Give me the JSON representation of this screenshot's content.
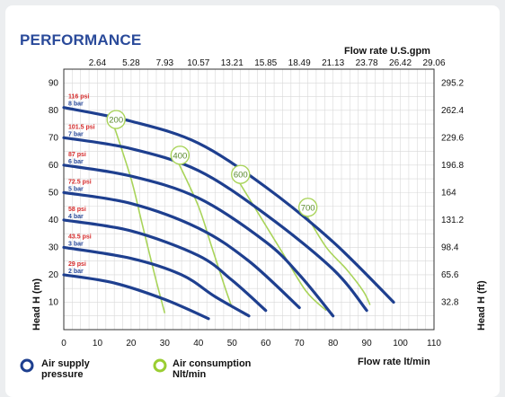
{
  "header": {
    "title": "PERFORMANCE"
  },
  "chart_data": {
    "type": "line",
    "title": "PERFORMANCE",
    "x_axis": {
      "label": "Flow rate  lt/min",
      "ticks": [
        "0",
        "10",
        "20",
        "30",
        "40",
        "50",
        "60",
        "70",
        "80",
        "90",
        "100",
        "110"
      ],
      "range": [
        0,
        110
      ]
    },
    "x2_axis": {
      "label": "Flow rate U.S.gpm",
      "ticks": [
        "2.64",
        "5.28",
        "7.93",
        "10.57",
        "13.21",
        "15.85",
        "18.49",
        "21.13",
        "23.78",
        "26.42",
        "29.06"
      ]
    },
    "y_axis": {
      "label": "Head H (m)",
      "ticks": [
        "10",
        "20",
        "30",
        "40",
        "50",
        "60",
        "70",
        "80",
        "90"
      ],
      "range": [
        0,
        95
      ]
    },
    "y2_axis": {
      "label": "Head H (ft)",
      "ticks": [
        "32.8",
        "65.6",
        "98.4",
        "131.2",
        "164",
        "196.8",
        "229.6",
        "262.4",
        "295.2"
      ]
    },
    "pressure_series": [
      {
        "psi": "116 psi",
        "bar": "8 bar",
        "points": [
          [
            0,
            81
          ],
          [
            20,
            76
          ],
          [
            40,
            68
          ],
          [
            60,
            52
          ],
          [
            80,
            32
          ],
          [
            98,
            10
          ]
        ]
      },
      {
        "psi": "101.5 psi",
        "bar": "7 bar",
        "points": [
          [
            0,
            70
          ],
          [
            20,
            66
          ],
          [
            40,
            58
          ],
          [
            60,
            42
          ],
          [
            80,
            22
          ],
          [
            90,
            7
          ]
        ]
      },
      {
        "psi": "87 psi",
        "bar": "6 bar",
        "points": [
          [
            0,
            60
          ],
          [
            20,
            56
          ],
          [
            40,
            48
          ],
          [
            60,
            32
          ],
          [
            70,
            20
          ],
          [
            80,
            5
          ]
        ]
      },
      {
        "psi": "72.5 psi",
        "bar": "5 bar",
        "points": [
          [
            0,
            50
          ],
          [
            20,
            46
          ],
          [
            40,
            37
          ],
          [
            55,
            25
          ],
          [
            70,
            8
          ]
        ]
      },
      {
        "psi": "58 psi",
        "bar": "4 bar",
        "points": [
          [
            0,
            40
          ],
          [
            20,
            36
          ],
          [
            40,
            27
          ],
          [
            50,
            18
          ],
          [
            60,
            7
          ]
        ]
      },
      {
        "psi": "43.5 psi",
        "bar": "3 bar",
        "points": [
          [
            0,
            30
          ],
          [
            20,
            26
          ],
          [
            35,
            20
          ],
          [
            45,
            12
          ],
          [
            55,
            5
          ]
        ]
      },
      {
        "psi": "29 psi",
        "bar": "2 bar",
        "points": [
          [
            0,
            20
          ],
          [
            15,
            17
          ],
          [
            30,
            11
          ],
          [
            43,
            4
          ]
        ]
      }
    ],
    "air_series": [
      {
        "label": "200",
        "points": [
          [
            15,
            74
          ],
          [
            20,
            55
          ],
          [
            23,
            40
          ],
          [
            27,
            20
          ],
          [
            30,
            6
          ]
        ]
      },
      {
        "label": "400",
        "points": [
          [
            34,
            61
          ],
          [
            40,
            45
          ],
          [
            44,
            30
          ],
          [
            48,
            15
          ],
          [
            50,
            8
          ]
        ]
      },
      {
        "label": "600",
        "points": [
          [
            52,
            54
          ],
          [
            58,
            42
          ],
          [
            65,
            28
          ],
          [
            72,
            14
          ],
          [
            78,
            7
          ]
        ]
      },
      {
        "label": "700",
        "points": [
          [
            72,
            42
          ],
          [
            78,
            30
          ],
          [
            84,
            22
          ],
          [
            89,
            14
          ],
          [
            91,
            9
          ]
        ]
      }
    ],
    "legend": [
      {
        "label": "Air supply pressure",
        "color": "#1e3f8f",
        "marker": "ring"
      },
      {
        "label": "Air consumption Nlt/min",
        "color": "#9acd32",
        "marker": "ring"
      }
    ]
  },
  "legend_lines": {
    "air_supply_1": "Air supply",
    "air_supply_2": "pressure",
    "air_consumption_1": "Air consumption",
    "air_consumption_2": "Nlt/min"
  }
}
